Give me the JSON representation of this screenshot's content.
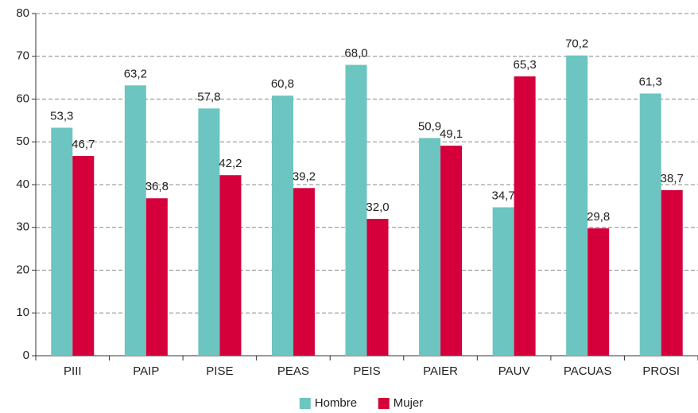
{
  "chart_data": {
    "type": "bar",
    "categories": [
      "PIII",
      "PAIP",
      "PISE",
      "PEAS",
      "PEIS",
      "PAIER",
      "PAUV",
      "PACUAS",
      "PROSI"
    ],
    "series": [
      {
        "name": "Hombre",
        "color": "#6cc5c0",
        "values": [
          53.3,
          63.2,
          57.8,
          60.8,
          68.0,
          50.9,
          34.7,
          70.2,
          61.3
        ],
        "value_labels": [
          "53,3",
          "63,2",
          "57,8",
          "60,8",
          "68,0",
          "50,9",
          "34,7",
          "70,2",
          "61,3"
        ]
      },
      {
        "name": "Mujer",
        "color": "#d5003b",
        "values": [
          46.7,
          36.8,
          42.2,
          39.2,
          32.0,
          49.1,
          65.3,
          29.8,
          38.7
        ],
        "value_labels": [
          "46,7",
          "36,8",
          "42,2",
          "39,2",
          "32,0",
          "49,1",
          "65,3",
          "29,8",
          "38,7"
        ]
      }
    ],
    "ylim": [
      0,
      80
    ],
    "yticks": [
      0,
      10,
      20,
      30,
      40,
      50,
      60,
      70,
      80
    ],
    "grid": true,
    "legend": "bottom"
  }
}
